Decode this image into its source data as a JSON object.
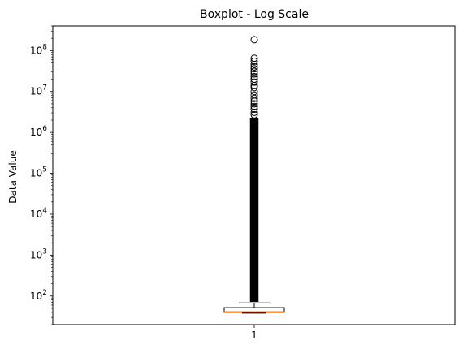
{
  "chart_data": {
    "type": "boxplot",
    "title": "Boxplot - Log Scale",
    "xlabel": "",
    "ylabel": "Data Value",
    "yscale": "log",
    "ylim": [
      20,
      400000000
    ],
    "grid": false,
    "categories": [
      "1"
    ],
    "y_ticks": [
      {
        "value": 100,
        "base": "10",
        "exp": "2"
      },
      {
        "value": 1000,
        "base": "10",
        "exp": "3"
      },
      {
        "value": 10000,
        "base": "10",
        "exp": "4"
      },
      {
        "value": 100000,
        "base": "10",
        "exp": "5"
      },
      {
        "value": 1000000,
        "base": "10",
        "exp": "6"
      },
      {
        "value": 10000000,
        "base": "10",
        "exp": "7"
      },
      {
        "value": 100000000,
        "base": "10",
        "exp": "8"
      }
    ],
    "box": {
      "whisker_low": 40,
      "q1": 40,
      "median": 41,
      "q3": 52,
      "whisker_high": 68,
      "flier_low": 72,
      "flier_high": 2200000,
      "outliers": [
        185000000,
        65000000,
        55000000,
        46000000,
        40000000,
        36000000,
        31000000,
        27000000,
        23000000,
        20000000,
        17000000,
        14000000,
        12500000,
        10000000,
        8200000,
        6800000,
        5800000,
        5000000,
        4300000,
        3700000,
        3100000,
        2700000
      ]
    },
    "colors": {
      "median": "#ff7f0e",
      "box": "#000000",
      "axes": "#000000"
    }
  }
}
